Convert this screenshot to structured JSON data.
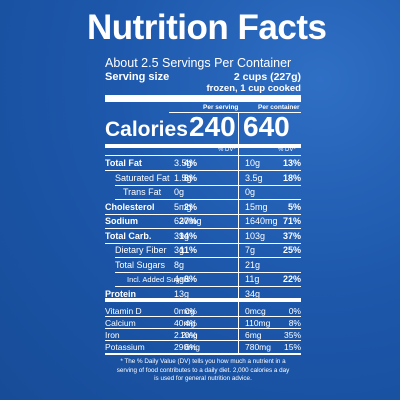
{
  "label": {
    "title": "Nutrition Facts",
    "servings_per_container": "About 2.5 Servings Per Container",
    "serving_size_label": "Serving size",
    "serving_size_value": "2 cups (227g)",
    "serving_size_note": "frozen, 1 cup cooked",
    "per_serving_heading": "Per serving",
    "per_container_heading": "Per container",
    "calories_label": "Calories",
    "calories_per_serving": "240",
    "calories_per_container": "640",
    "dv_heading": "% DV*",
    "nutrients": [
      {
        "name": "Total Fat",
        "serv": "3.5g",
        "serv_dv": "4%",
        "cont": "10g",
        "cont_dv": "13%"
      },
      {
        "name": "Saturated Fat",
        "serv": "1.5g",
        "serv_dv": "8%",
        "cont": "3.5g",
        "cont_dv": "18%"
      },
      {
        "name": "Trans Fat",
        "serv": "0g",
        "serv_dv": "",
        "cont": "0g",
        "cont_dv": ""
      },
      {
        "name": "Cholesterol",
        "serv": "5mg",
        "serv_dv": "2%",
        "cont": "15mg",
        "cont_dv": "5%"
      },
      {
        "name": "Sodium",
        "serv": "630mg",
        "serv_dv": "27%",
        "cont": "1640mg",
        "cont_dv": "71%"
      },
      {
        "name": "Total Carb.",
        "serv": "39g",
        "serv_dv": "14%",
        "cont": "103g",
        "cont_dv": "37%"
      },
      {
        "name": "Dietary Fiber",
        "serv": "3g",
        "serv_dv": "11%",
        "cont": "7g",
        "cont_dv": "25%"
      },
      {
        "name": "Total Sugars",
        "serv": "8g",
        "serv_dv": "",
        "cont": "21g",
        "cont_dv": ""
      },
      {
        "name": "Incl. Added Sugars",
        "serv": "4g",
        "serv_dv": "8%",
        "cont": "11g",
        "cont_dv": "22%"
      },
      {
        "name": "Protein",
        "serv": "13g",
        "serv_dv": "",
        "cont": "34g",
        "cont_dv": ""
      }
    ],
    "vitamins": [
      {
        "name": "Vitamin D",
        "serv": "0mcg",
        "serv_dv": "0%",
        "cont": "0mcg",
        "cont_dv": "0%"
      },
      {
        "name": "Calcium",
        "serv": "40mg",
        "serv_dv": "4%",
        "cont": "110mg",
        "cont_dv": "8%"
      },
      {
        "name": "Iron",
        "serv": "2.2mg",
        "serv_dv": "10%",
        "cont": "6mg",
        "cont_dv": "35%"
      },
      {
        "name": "Potassium",
        "serv": "290mg",
        "serv_dv": "6%",
        "cont": "780mg",
        "cont_dv": "15%"
      }
    ],
    "footnote": "* The % Daily Value (DV) tells you how much a nutrient in a serving of food contributes to a daily diet. 2,000 calories a day is used for general nutrition advice."
  },
  "colors": {
    "background": "#1d58ac",
    "text": "#ffffff"
  }
}
